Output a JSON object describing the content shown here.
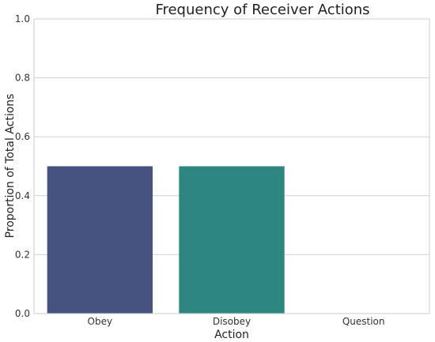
{
  "chart_data": {
    "type": "bar",
    "title": "Frequency of Receiver Actions",
    "xlabel": "Action",
    "ylabel": "Proportion of Total Actions",
    "categories": [
      "Obey",
      "Disobey",
      "Question"
    ],
    "values": [
      0.5,
      0.5,
      0.0
    ],
    "colors": [
      "#46527f",
      "#2e8680",
      "#8fd06a"
    ],
    "ylim": [
      0,
      1.0
    ],
    "yticks": [
      "0.0",
      "0.2",
      "0.4",
      "0.6",
      "0.8",
      "1.0"
    ],
    "grid": "horizontal",
    "legend": "none"
  }
}
